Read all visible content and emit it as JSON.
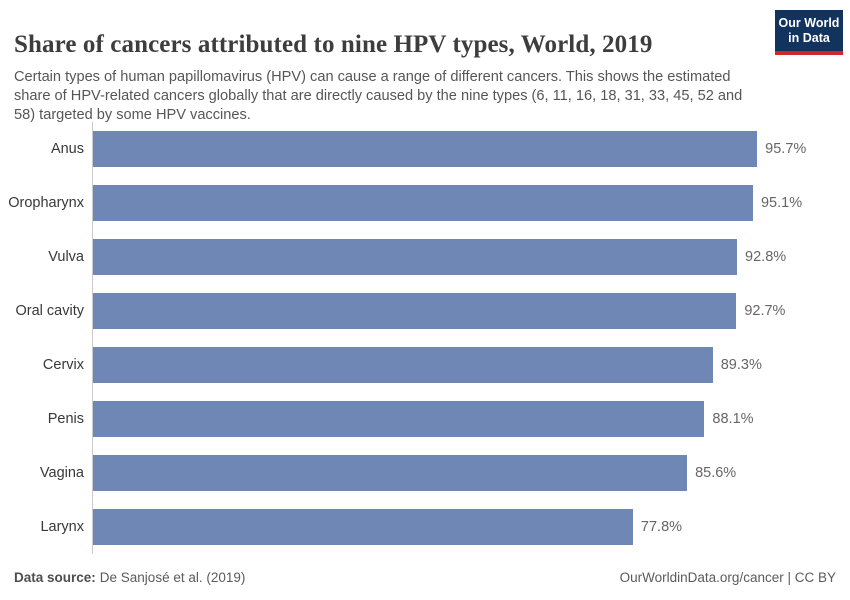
{
  "header": {
    "title": "Share of cancers attributed to nine HPV types, World, 2019",
    "subtitle": "Certain types of human papillomavirus (HPV) can cause a range of different cancers. This shows the estimated share of HPV-related cancers globally that are directly caused by the nine types (6, 11, 16, 18, 31, 33, 45, 52 and 58) targeted by some HPV vaccines.",
    "logo": {
      "line1": "Our World",
      "line2": "in Data",
      "bg_color": "#12335e",
      "accent_color": "#d2262c"
    }
  },
  "chart_data": {
    "type": "bar",
    "orientation": "horizontal",
    "title": "Share of cancers attributed to nine HPV types, World, 2019",
    "categories": [
      "Anus",
      "Oropharynx",
      "Vulva",
      "Oral cavity",
      "Cervix",
      "Penis",
      "Vagina",
      "Larynx"
    ],
    "values": [
      95.7,
      95.1,
      92.8,
      92.7,
      89.3,
      88.1,
      85.6,
      77.8
    ],
    "value_labels": [
      "95.7%",
      "95.1%",
      "92.8%",
      "92.7%",
      "89.3%",
      "88.1%",
      "85.6%",
      "77.8%"
    ],
    "xlabel": "",
    "ylabel": "",
    "xlim": [
      0,
      100
    ],
    "unit": "%",
    "bar_color": "#6e87b5",
    "axis_line_color": "#cbcbcb",
    "grid": false,
    "legend": false
  },
  "footer": {
    "datasource_label": "Data source:",
    "datasource_value": "De Sanjosé et al. (2019)",
    "link": "OurWorldinData.org/cancer",
    "separator": " | ",
    "license": "CC BY"
  }
}
